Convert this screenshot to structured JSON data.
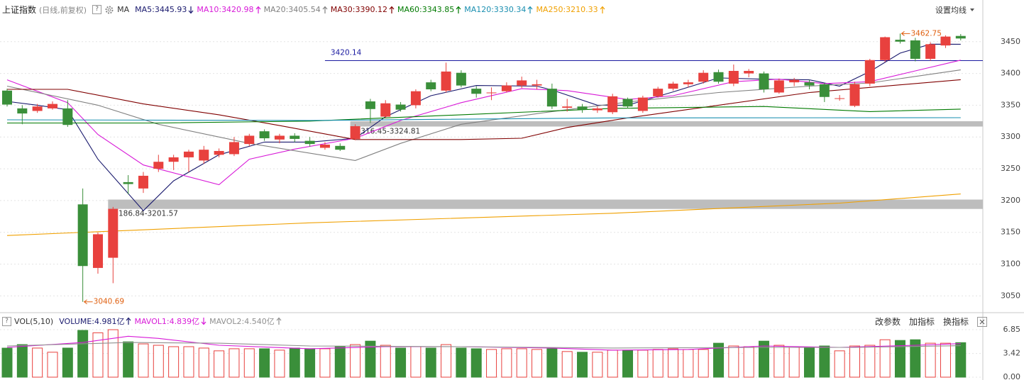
{
  "help": "?",
  "header_settings": "设置均线",
  "volume_buttons": [
    "改参数",
    "加指标",
    "换指标"
  ],
  "chart_data": [
    {
      "type": "candlestick",
      "title": "上证指数",
      "subtitle": "(日线,前复权)",
      "indicator": "MA",
      "up_color": "#e8413e",
      "down_color": "#3a8f3a",
      "grid": true,
      "ylim": [
        3027,
        3491
      ],
      "yticks": [
        3050,
        3100,
        3150,
        3200,
        3250,
        3300,
        3350,
        3400,
        3450
      ],
      "open": [
        3373,
        3345,
        3341,
        3345,
        3345,
        3194,
        3094,
        3110,
        3229,
        3219,
        3250,
        3261,
        3268,
        3263,
        3272,
        3273,
        3289,
        3309,
        3296,
        3302,
        3294,
        3283,
        3286,
        3297,
        3356,
        3332,
        3351,
        3350,
        3386,
        3373,
        3401,
        3376,
        3369,
        3372,
        3381,
        3381,
        3376,
        3346,
        3348,
        3342,
        3339,
        3360,
        3341,
        3364,
        3376,
        3383,
        3387,
        3402,
        3384,
        3400,
        3400,
        3370,
        3386,
        3386,
        3383,
        3360,
        3349,
        3384,
        3421,
        3453,
        3452,
        3423,
        3444,
        3459
      ],
      "high": [
        3376,
        3350,
        3352,
        3356,
        3358,
        3219,
        3150,
        3190,
        3240,
        3245,
        3272,
        3272,
        3280,
        3286,
        3282,
        3300,
        3305,
        3312,
        3305,
        3306,
        3300,
        3292,
        3290,
        3320,
        3360,
        3358,
        3355,
        3375,
        3390,
        3417,
        3405,
        3380,
        3378,
        3386,
        3395,
        3390,
        3384,
        3360,
        3352,
        3348,
        3368,
        3362,
        3365,
        3379,
        3387,
        3390,
        3405,
        3406,
        3414,
        3407,
        3403,
        3392,
        3393,
        3390,
        3385,
        3366,
        3387,
        3423,
        3458,
        3462.75,
        3456,
        3449,
        3460,
        3462
      ],
      "low": [
        3348,
        3320,
        3338,
        3343,
        3316,
        3040.69,
        3085,
        3070,
        3210,
        3212,
        3245,
        3248,
        3245,
        3258,
        3268,
        3270,
        3286,
        3294,
        3290,
        3292,
        3285,
        3280,
        3278,
        3295,
        3322,
        3330,
        3340,
        3345,
        3372,
        3370,
        3378,
        3362,
        3358,
        3370,
        3377,
        3375,
        3344,
        3340,
        3338,
        3338,
        3336,
        3345,
        3338,
        3362,
        3373,
        3378,
        3384,
        3384,
        3380,
        3394,
        3370,
        3368,
        3380,
        3375,
        3355,
        3357,
        3347,
        3380,
        3418,
        3447,
        3419,
        3420,
        3440,
        3452
      ],
      "close": [
        3351,
        3337,
        3348,
        3352,
        3319,
        3097,
        3147,
        3187,
        3226,
        3239,
        3261,
        3268,
        3277,
        3280,
        3278,
        3292,
        3302,
        3298,
        3302,
        3297,
        3289,
        3288,
        3280,
        3317,
        3344,
        3353,
        3343,
        3372,
        3375,
        3403,
        3381,
        3368,
        3370,
        3381,
        3389,
        3383,
        3348,
        3348,
        3343,
        3345,
        3364,
        3348,
        3362,
        3376,
        3384,
        3386,
        3401,
        3387,
        3404,
        3404,
        3375,
        3389,
        3390,
        3381,
        3363,
        3361,
        3383,
        3421,
        3457,
        3450,
        3423,
        3446,
        3458,
        3455
      ],
      "series": [
        {
          "name": "MA5:3445.93",
          "color": "#1a1a6e",
          "trend": "down",
          "x": [
            0,
            2,
            4,
            6,
            9,
            11,
            14,
            17,
            20,
            23,
            25,
            28,
            31,
            35,
            36,
            39,
            41,
            44,
            47,
            50,
            53,
            55,
            57,
            59,
            61,
            63
          ],
          "values": [
            3356,
            3350,
            3343,
            3265,
            3184,
            3231,
            3272,
            3292,
            3292,
            3298,
            3332,
            3365,
            3381,
            3380,
            3374,
            3350,
            3350,
            3371,
            3393,
            3391,
            3390,
            3380,
            3403,
            3432,
            3446,
            3445.93
          ]
        },
        {
          "name": "MA10:3420.98",
          "color": "#d81ad8",
          "trend": "up",
          "x": [
            0,
            4,
            6,
            9,
            14,
            16,
            19,
            23,
            26,
            30,
            34,
            37,
            41,
            44,
            48,
            51,
            54,
            57,
            60,
            63
          ],
          "values": [
            3390,
            3354,
            3304,
            3256,
            3225,
            3265,
            3281,
            3298,
            3326,
            3354,
            3376,
            3373,
            3359,
            3365,
            3387,
            3391,
            3384,
            3387,
            3404,
            3420.98
          ]
        },
        {
          "name": "MA20:3405.54",
          "color": "#808080",
          "trend": "up",
          "x": [
            0,
            6,
            10,
            16,
            23,
            26,
            30,
            36,
            41,
            47,
            53,
            57,
            63
          ],
          "values": [
            3380,
            3350,
            3320,
            3290,
            3263,
            3290,
            3320,
            3340,
            3355,
            3370,
            3380,
            3385,
            3405.54
          ]
        },
        {
          "name": "MA30:3390.12",
          "color": "#800000",
          "trend": "up",
          "x": [
            0,
            4,
            9,
            14,
            18,
            23,
            30,
            34,
            37,
            41,
            47,
            53,
            57,
            63
          ],
          "values": [
            3375,
            3375,
            3352,
            3335,
            3318,
            3296,
            3296,
            3298,
            3315,
            3330,
            3350,
            3370,
            3378,
            3390.12
          ]
        },
        {
          "name": "MA60:3343.85",
          "color": "#007a00",
          "trend": "up",
          "x": [
            0,
            10,
            20,
            30,
            40,
            50,
            57,
            63
          ],
          "values": [
            3322,
            3322,
            3325,
            3335,
            3345,
            3348,
            3340,
            3343.85
          ]
        },
        {
          "name": "MA120:3330.34",
          "color": "#1a8fb0",
          "trend": "up",
          "x": [
            0,
            20,
            40,
            63
          ],
          "values": [
            3327,
            3326,
            3330,
            3330.34
          ]
        },
        {
          "name": "MA250:3210.33",
          "color": "#f0a000",
          "trend": "up",
          "x": [
            0,
            20,
            40,
            55,
            63
          ],
          "values": [
            3145,
            3165,
            3180,
            3196,
            3210.33
          ]
        }
      ],
      "hline": {
        "value": 3420.14,
        "start": 21,
        "color": "#1a1aa0"
      },
      "bands": [
        {
          "low": 3316.45,
          "high": 3324.81,
          "label": "3316.45-3324.81",
          "start": 23
        },
        {
          "low": 3186.84,
          "high": 3201.57,
          "label": "3186.84-3201.57",
          "start": 7
        }
      ],
      "extremes": {
        "max": 3462.75,
        "min": 3040.69,
        "color": "#e06010"
      }
    },
    {
      "type": "bar",
      "title": "VOL(5,10)",
      "volume_label": "VOLUME:4.981亿",
      "volume_color": "#1a1a6e",
      "volume_trend": "up",
      "grid": true,
      "ylim": [
        0,
        8.9
      ],
      "yticks": [
        {
          "value": 0,
          "label": "0.00"
        },
        3.42,
        6.85
      ],
      "values": [
        4.19,
        4.7,
        4.2,
        3.6,
        4.2,
        6.75,
        6.4,
        6.85,
        5.1,
        4.8,
        4.6,
        4.4,
        4.4,
        4.2,
        3.8,
        4.1,
        4.1,
        4.1,
        3.9,
        4.2,
        4.1,
        4.1,
        4.4,
        4.7,
        5.2,
        4.6,
        4.2,
        4.4,
        4.2,
        4.7,
        4.2,
        4.1,
        4.0,
        4.1,
        4.1,
        4.0,
        4.1,
        3.7,
        3.6,
        3.6,
        3.9,
        3.9,
        3.9,
        4.0,
        4.1,
        4.0,
        4.0,
        4.9,
        4.5,
        4.4,
        5.2,
        4.6,
        4.3,
        4.2,
        4.5,
        3.8,
        4.5,
        4.6,
        5.4,
        5.3,
        5.4,
        4.9,
        4.9,
        4.981
      ],
      "series": [
        {
          "name": "MAVOL1:4.839亿",
          "color": "#d81ad8",
          "trend": "down",
          "x": [
            0,
            5,
            8,
            10,
            14,
            20,
            25,
            30,
            36,
            40,
            45,
            50,
            55,
            60,
            63
          ],
          "values": [
            4.3,
            5.0,
            5.9,
            5.6,
            4.6,
            4.1,
            4.4,
            4.4,
            4.2,
            3.9,
            4.0,
            4.5,
            4.3,
            4.6,
            4.839
          ]
        },
        {
          "name": "MAVOL2:4.540亿",
          "color": "#909090",
          "trend": "up",
          "x": [
            0,
            8,
            14,
            20,
            30,
            40,
            50,
            56,
            63
          ],
          "values": [
            4.5,
            5.0,
            4.9,
            4.5,
            4.4,
            4.2,
            4.3,
            4.3,
            4.54
          ]
        }
      ]
    }
  ]
}
